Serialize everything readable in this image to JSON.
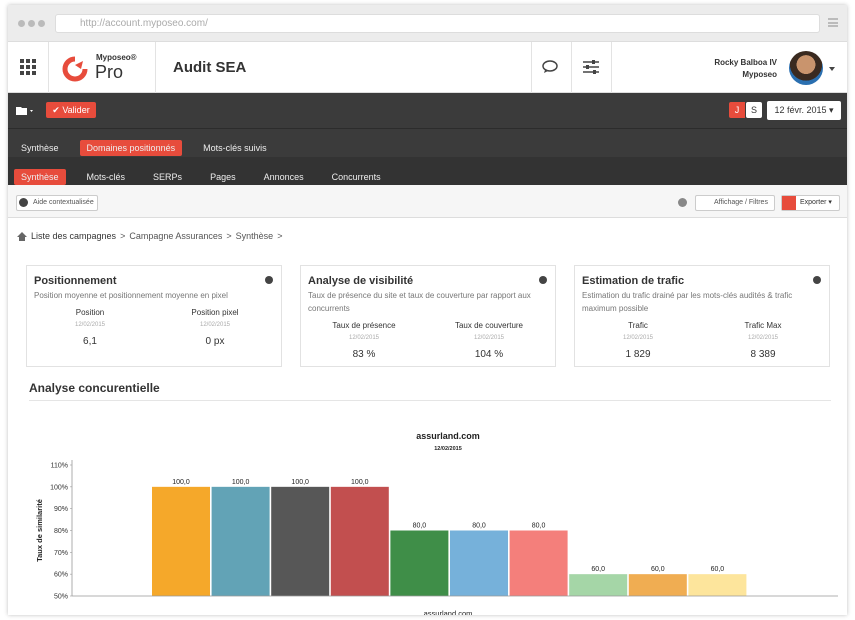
{
  "browser": {
    "url": "http://account.myposeo.com/"
  },
  "header": {
    "brand_top": "Myposeo®",
    "brand": "Pro",
    "title": "Audit SEA",
    "user_name": "Rocky Balboa IV",
    "user_org": "Myposeo"
  },
  "toolbar": {
    "validate": "Valider",
    "j": "J",
    "s": "S",
    "date": "12 févr. 2015"
  },
  "nav1": {
    "items": [
      "Synthèse",
      "Domaines positionnés",
      "Mots-clés suivis"
    ],
    "active": 1
  },
  "nav2": {
    "items": [
      "Synthèse",
      "Mots-clés",
      "SERPs",
      "Pages",
      "Annonces",
      "Concurrents"
    ],
    "active": 0
  },
  "subbar": {
    "help": "Aide contextualisée",
    "display": "Affichage / Filtres",
    "export": "Exporter"
  },
  "breadcrumb": {
    "items": [
      "Liste des campagnes",
      "Campagne Assurances",
      "Synthèse"
    ],
    "separator": ">"
  },
  "cards": [
    {
      "title": "Positionnement",
      "subtitle": "Position moyenne et positionnement moyenne en pixel",
      "metrics": [
        {
          "label": "Position",
          "date": "12/02/2015",
          "value": "6,1"
        },
        {
          "label": "Position pixel",
          "date": "12/02/2015",
          "value": "0 px"
        }
      ]
    },
    {
      "title": "Analyse de visibilité",
      "subtitle": "Taux de présence du site et taux de couverture par rapport aux concurrents",
      "metrics": [
        {
          "label": "Taux de présence",
          "date": "12/02/2015",
          "value": "83 %"
        },
        {
          "label": "Taux de couverture",
          "date": "12/02/2015",
          "value": "104 %"
        }
      ]
    },
    {
      "title": "Estimation de trafic",
      "subtitle": "Estimation du trafic drainé par les mots-clés audités & trafic maximum possible",
      "metrics": [
        {
          "label": "Trafic",
          "date": "12/02/2015",
          "value": "1 829"
        },
        {
          "label": "Trafic Max",
          "date": "12/02/2015",
          "value": "8 389"
        }
      ]
    }
  ],
  "section_title": "Analyse concurentielle",
  "chart_data": {
    "type": "bar",
    "title": "assurland.com",
    "subtitle": "12/02/2015",
    "x_label": "assurland.com",
    "y_label": "Taux de similarité",
    "categories": [
      null,
      null,
      null,
      null,
      null,
      null,
      null,
      null,
      null,
      null
    ],
    "values": [
      100,
      100,
      100,
      100,
      80,
      80,
      80,
      60,
      60,
      60
    ],
    "value_labels": [
      "100,0",
      "100,0",
      "100,0",
      "100,0",
      "80,0",
      "80,0",
      "80,0",
      "60,0",
      "60,0",
      "60,0"
    ],
    "colors": [
      "#f5a82a",
      "#62a3b6",
      "#575757",
      "#c24f4f",
      "#3f8e48",
      "#76b1da",
      "#f47f7b",
      "#a5d6a7",
      "#f0ad52",
      "#fde59c"
    ],
    "ylim": [
      50,
      110
    ],
    "yticks": [
      {
        "value": 50,
        "label": "50%"
      },
      {
        "value": 60,
        "label": "60%"
      },
      {
        "value": 70,
        "label": "70%"
      },
      {
        "value": 80,
        "label": "80%"
      },
      {
        "value": 90,
        "label": "90%"
      },
      {
        "value": 100,
        "label": "100%"
      },
      {
        "value": 110,
        "label": "110%"
      }
    ],
    "grid": false
  }
}
